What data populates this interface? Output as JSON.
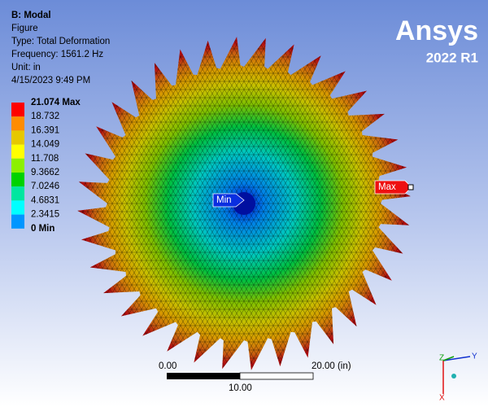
{
  "header": {
    "title": "B: Modal",
    "lines": [
      "Figure",
      "Type: Total Deformation",
      "Frequency: 1561.2 Hz",
      "Unit: in",
      "4/15/2023 9:49 PM"
    ]
  },
  "logo": {
    "name": "Ansys",
    "version": "2022 R1"
  },
  "legend": {
    "items": [
      {
        "label": "21.074 Max",
        "color": "#ff0000"
      },
      {
        "label": "18.732",
        "color": "#ff8c00"
      },
      {
        "label": "16.391",
        "color": "#e6c800"
      },
      {
        "label": "14.049",
        "color": "#ffff00"
      },
      {
        "label": "11.708",
        "color": "#8cf000"
      },
      {
        "label": "9.3662",
        "color": "#00d200"
      },
      {
        "label": "7.0246",
        "color": "#00e6a0"
      },
      {
        "label": "4.6831",
        "color": "#00ffff"
      },
      {
        "label": "2.3415",
        "color": "#0096ff"
      },
      {
        "label": "0 Min",
        "color": "#0000ff"
      }
    ]
  },
  "probes": {
    "min": "Min",
    "max": "Max"
  },
  "scale_bar": {
    "left": "0.00",
    "right": "20.00 (in)",
    "middle": "10.00"
  },
  "triad": {
    "x": "X",
    "y": "Y",
    "z": "Z"
  }
}
